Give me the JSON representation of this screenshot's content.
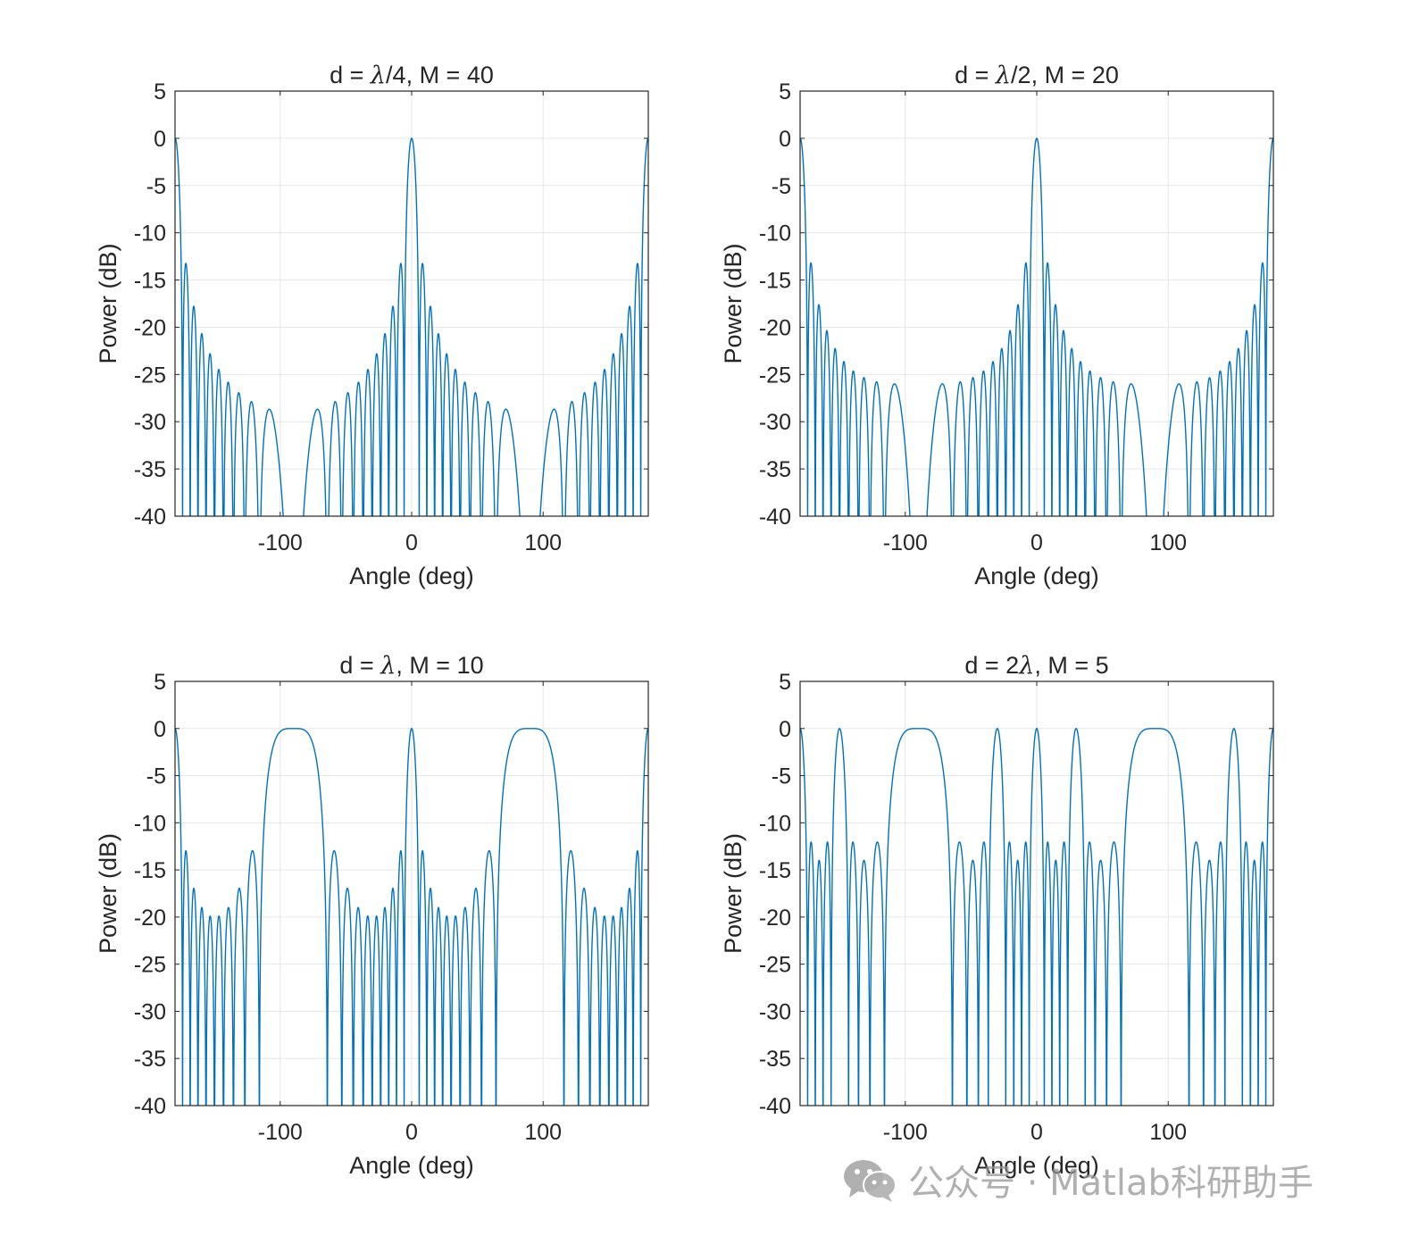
{
  "watermark": {
    "text": "公众号 · Matlab科研助手",
    "icon": "wechat-icon"
  },
  "style": {
    "line_color": "#0072BD",
    "grid_color": "#e6e6e6",
    "axis_color": "#262626"
  },
  "chart_data": [
    {
      "type": "line",
      "title_plain": "d = ",
      "title_lambda": "λ",
      "title_rest": "/4, M = 40",
      "d_over_lambda": 0.25,
      "M": 40,
      "xlabel": "Angle (deg)",
      "ylabel": "Power (dB)",
      "xlim": [
        -180,
        180
      ],
      "ylim": [
        -40,
        5
      ],
      "xticks": [
        -100,
        0,
        100
      ],
      "yticks": [
        5,
        0,
        -5,
        -10,
        -15,
        -20,
        -25,
        -30,
        -35,
        -40
      ],
      "grid": true,
      "legend": "none"
    },
    {
      "type": "line",
      "title_plain": "d = ",
      "title_lambda": "λ",
      "title_rest": "/2, M = 20",
      "d_over_lambda": 0.5,
      "M": 20,
      "xlabel": "Angle (deg)",
      "ylabel": "Power (dB)",
      "xlim": [
        -180,
        180
      ],
      "ylim": [
        -40,
        5
      ],
      "xticks": [
        -100,
        0,
        100
      ],
      "yticks": [
        5,
        0,
        -5,
        -10,
        -15,
        -20,
        -25,
        -30,
        -35,
        -40
      ],
      "grid": true,
      "legend": "none"
    },
    {
      "type": "line",
      "title_plain": "d = ",
      "title_lambda": "λ",
      "title_rest": ", M = 10",
      "d_over_lambda": 1,
      "M": 10,
      "xlabel": "Angle (deg)",
      "ylabel": "Power (dB)",
      "xlim": [
        -180,
        180
      ],
      "ylim": [
        -40,
        5
      ],
      "xticks": [
        -100,
        0,
        100
      ],
      "yticks": [
        5,
        0,
        -5,
        -10,
        -15,
        -20,
        -25,
        -30,
        -35,
        -40
      ],
      "grid": true,
      "legend": "none"
    },
    {
      "type": "line",
      "title_plain": "d = 2",
      "title_lambda": "λ",
      "title_rest": ", M = 5",
      "d_over_lambda": 2,
      "M": 5,
      "xlabel": "Angle (deg)",
      "ylabel": "Power (dB)",
      "xlim": [
        -180,
        180
      ],
      "ylim": [
        -40,
        5
      ],
      "xticks": [
        -100,
        0,
        100
      ],
      "yticks": [
        5,
        0,
        -5,
        -10,
        -15,
        -20,
        -25,
        -30,
        -35,
        -40
      ],
      "grid": true,
      "legend": "none"
    }
  ]
}
